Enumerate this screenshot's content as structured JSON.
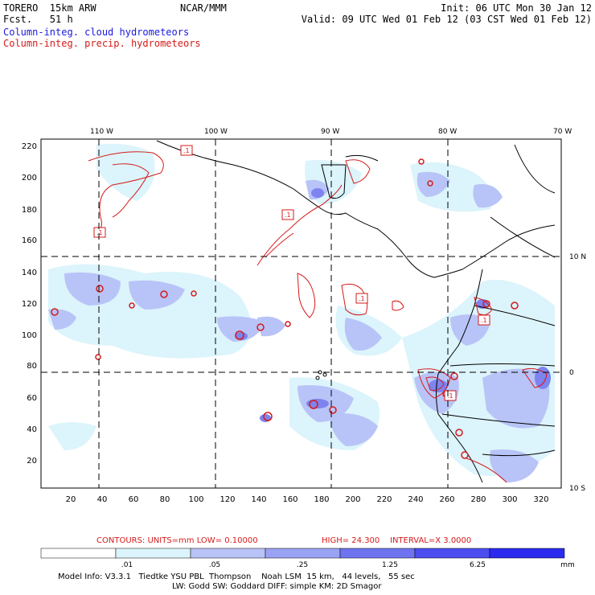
{
  "header": {
    "model_line": "TORERO  15km ARW",
    "fcst_line": "Fcst.   51 h",
    "org": "NCAR/MMM",
    "init": "Init: 06 UTC Mon 30 Jan 12",
    "valid": "Valid: 09 UTC Wed 01 Feb 12 (03 CST Wed 01 Feb 12)",
    "field_cloud": "Column-integ. cloud hydrometeors",
    "field_precip": "Column-integ. precip. hydrometeors"
  },
  "map": {
    "top_lon_labels": [
      "110 W",
      "100 W",
      "90 W",
      "80 W",
      "70 W"
    ],
    "right_lat_labels": [
      "10 N",
      "0",
      "10 S"
    ],
    "y_grid_labels": [
      "220",
      "200",
      "180",
      "160",
      "140",
      "120",
      "100",
      "80",
      "60",
      "40",
      "20"
    ],
    "x_grid_labels": [
      "20",
      "40",
      "60",
      "80",
      "100",
      "120",
      "140",
      "160",
      "180",
      "200",
      "220",
      "240",
      "260",
      "280",
      "300",
      "320"
    ],
    "contour_label": ".1"
  },
  "contour_info": {
    "contours": "CONTOURS:  UNITS=mm  LOW= 0.10000",
    "high": "HIGH=  24.300",
    "interval": "INTERVAL=X  3.0000"
  },
  "colorbar": {
    "colors": [
      "#ffffff",
      "#dcf4fb",
      "#b8c4f7",
      "#9aa2f4",
      "#6e74ef",
      "#4c4ef0",
      "#2b2bf0"
    ],
    "ticks": [
      ".01",
      ".05",
      ".25",
      "1.25",
      "6.25"
    ],
    "unit": "mm"
  },
  "footer": {
    "line1": "Model Info: V3.3.1   Tiedtke YSU PBL  Thompson    Noah LSM  15 km,   44 levels,   55 sec",
    "line2": "LW: Godd SW: Goddard DIFF: simple KM: 2D Smagor"
  }
}
